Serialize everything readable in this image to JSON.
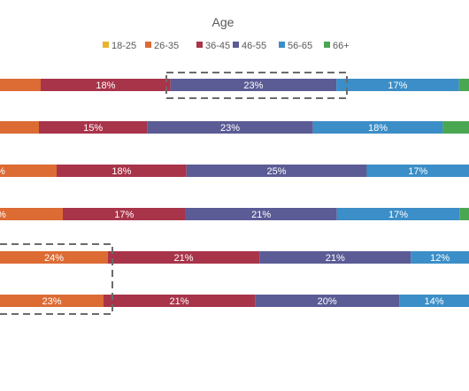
{
  "chart_data": {
    "type": "bar",
    "orientation": "horizontal",
    "stacked": true,
    "title": "",
    "legend": {
      "title": "Age",
      "placement": "top"
    },
    "categories": [
      "",
      "",
      "",
      "",
      "",
      ""
    ],
    "series": [
      {
        "name": "18-25",
        "color": "#e7b32f",
        "values": [
          0,
          0,
          0,
          0,
          0,
          0
        ]
      },
      {
        "name": "26-35",
        "color": "#dc6b34",
        "values": [
          null,
          null,
          null,
          null,
          24,
          23
        ]
      },
      {
        "name": "36-45",
        "color": "#a8344a",
        "values": [
          18,
          15,
          18,
          17,
          21,
          21
        ]
      },
      {
        "name": "46-55",
        "color": "#5b5b95",
        "values": [
          23,
          23,
          25,
          21,
          21,
          20
        ]
      },
      {
        "name": "56-65",
        "color": "#3b8ec7",
        "values": [
          17,
          18,
          17,
          17,
          12,
          14
        ]
      },
      {
        "name": "66+",
        "color": "#4aa751",
        "values": [
          null,
          null,
          null,
          null,
          null,
          null
        ]
      }
    ],
    "grid": false,
    "highlights": [
      {
        "series": "46-55",
        "row": 0
      },
      {
        "series": "26-35",
        "row": 4
      },
      {
        "series": "26-35",
        "row": 5
      }
    ]
  }
}
